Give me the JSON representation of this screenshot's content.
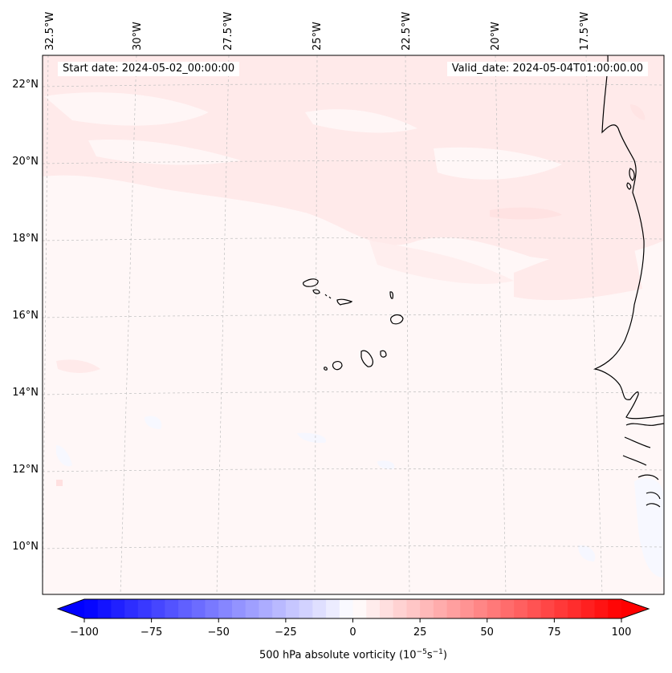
{
  "map": {
    "start_date": "Start date: 2024-05-02_00:00:00",
    "valid_date": "Valid_date: 2024-05-04T01:00:00.00",
    "lon_labels": [
      "32.5°W",
      "30°W",
      "27.5°W",
      "25°W",
      "22.5°W",
      "20°W",
      "17.5°W"
    ],
    "lat_labels": [
      "22°N",
      "20°N",
      "18°N",
      "16°N",
      "14°N",
      "12°N",
      "10°N"
    ],
    "field": "500 hPa absolute vorticity",
    "region": "Cabo Verde islands and West African coast"
  },
  "colorbar": {
    "label_text": "500 hPa absolute vorticity (10",
    "label_exp1": "−5",
    "label_mid": "s",
    "label_exp2": "−1",
    "label_close": ")",
    "ticks": [
      "−100",
      "−75",
      "−50",
      "−25",
      "0",
      "25",
      "50",
      "75",
      "100"
    ],
    "min": -100,
    "max": 100,
    "levels": 41,
    "colors": {
      "negative": "#0000ff",
      "zero": "#ffffff",
      "positive": "#ff0000"
    }
  }
}
